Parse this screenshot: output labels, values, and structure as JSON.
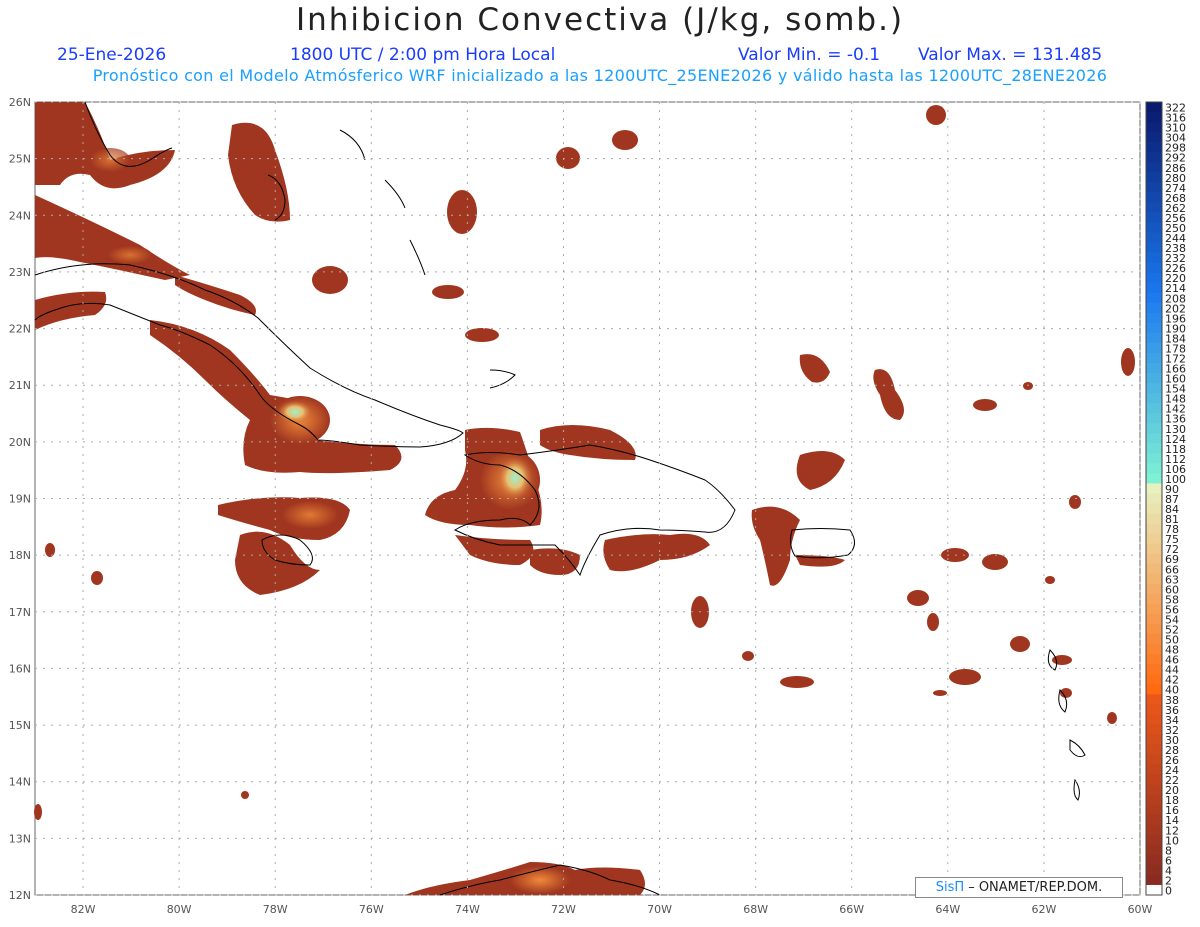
{
  "header": {
    "title": "Inhibicion Convectiva (J/kg, somb.)",
    "date": "25-Ene-2026",
    "time": "1800 UTC / 2:00 pm Hora Local",
    "min_label": "Valor Min. = -0.1",
    "max_label": "Valor Max. = 131.485",
    "subtitle": "Pronóstico con el Modelo Atmósferico WRF inicializado a las 1200UTC_25ENE2026 y válido hasta las  1200UTC_28ENE2026"
  },
  "credit": {
    "brand": "SisΠ",
    "text": "– ONAMET/REP.DOM."
  },
  "map": {
    "lon_range": [
      -83.0,
      -60.0
    ],
    "lat_range": [
      12.0,
      26.0
    ],
    "lon_ticks": [
      "82W",
      "80W",
      "78W",
      "76W",
      "74W",
      "72W",
      "70W",
      "68W",
      "66W",
      "64W",
      "62W",
      "60W"
    ],
    "lat_ticks": [
      "26N",
      "25N",
      "24N",
      "23N",
      "22N",
      "21N",
      "20N",
      "19N",
      "18N",
      "17N",
      "16N",
      "15N",
      "14N",
      "13N",
      "12N"
    ],
    "fill_color": "#a0361f",
    "highlight_color": "#e06a2a",
    "peak_color": "#8ee8c8",
    "coast_color": "#000000",
    "grid_color": "#aaaaaa"
  },
  "colorbar": {
    "labels": [
      "322",
      "316",
      "310",
      "304",
      "298",
      "292",
      "286",
      "280",
      "274",
      "268",
      "262",
      "256",
      "250",
      "244",
      "238",
      "232",
      "226",
      "220",
      "214",
      "208",
      "202",
      "196",
      "190",
      "184",
      "178",
      "172",
      "166",
      "160",
      "154",
      "148",
      "142",
      "136",
      "130",
      "124",
      "118",
      "112",
      "106",
      "100",
      "90",
      "87",
      "84",
      "81",
      "78",
      "75",
      "72",
      "69",
      "66",
      "63",
      "60",
      "58",
      "56",
      "54",
      "52",
      "50",
      "48",
      "46",
      "44",
      "42",
      "40",
      "38",
      "36",
      "34",
      "32",
      "30",
      "28",
      "26",
      "24",
      "22",
      "20",
      "18",
      "16",
      "14",
      "12",
      "10",
      "8",
      "6",
      "4",
      "2",
      "0"
    ]
  }
}
